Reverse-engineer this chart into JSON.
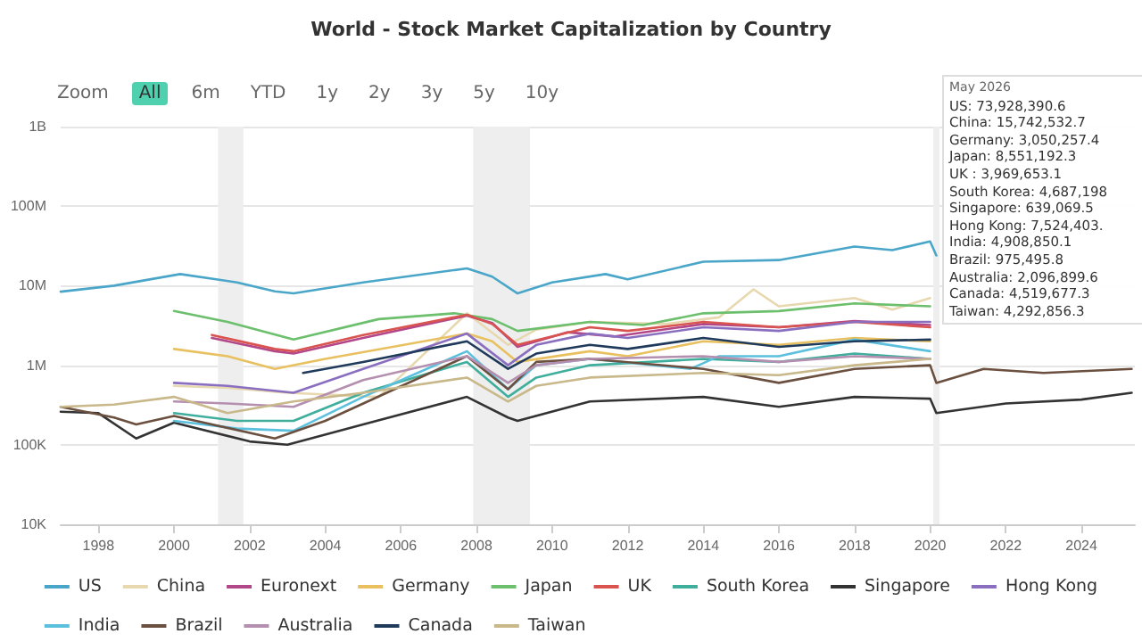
{
  "chart_data": {
    "type": "line",
    "title": "World - Stock Market Capitalization by Country",
    "log": "y",
    "grid": "y",
    "legend": "bottom",
    "marker": "none",
    "line_style": "solid",
    "xlim": [
      "1997-01",
      "2025-06"
    ],
    "xticks": [
      "1998",
      "2000",
      "2002",
      "2004",
      "2006",
      "2008",
      "2010",
      "2012",
      "2014",
      "2016",
      "2018",
      "2020",
      "2022",
      "2024"
    ],
    "ylim": [
      10000,
      1000000000
    ],
    "yticks": [
      {
        "value": 10000,
        "label": "10K"
      },
      {
        "value": 100000,
        "label": "100K"
      },
      {
        "value": 1000000,
        "label": "1M"
      },
      {
        "value": 10000000,
        "label": "10M"
      },
      {
        "value": 100000000,
        "label": "100M"
      },
      {
        "value": 1000000000,
        "label": "1B"
      }
    ],
    "bands": [
      {
        "axis": "x",
        "from": "2001-03",
        "to": "2001-11",
        "color": "#eeeeee"
      },
      {
        "axis": "x",
        "from": "2007-12",
        "to": "2009-06",
        "color": "#eeeeee"
      },
      {
        "axis": "x",
        "from": "2020-02",
        "to": "2020-04",
        "color": "#eeeeee"
      }
    ],
    "annotations": [
      "Zoom",
      "All",
      "6m",
      "YTD",
      "1y",
      "2y",
      "3y",
      "5y",
      "10y",
      "May 2026",
      "US: 73,928,390.6",
      "China: 15,742,532.7",
      "Germany: 3,050,257.4",
      "Japan: 8,551,192.3",
      "UK : 3,969,653.1",
      "South Korea: 4,687,198",
      "Singapore: 639,069.5",
      "Hong Kong: 7,524,403.",
      "India: 4,908,850.1",
      "Brazil: 975,495.8",
      "Australia: 2,096,899.6",
      "Canada: 4,519,677.3",
      "Taiwan: 4,292,856.3"
    ],
    "series": [
      {
        "name": "US",
        "color": "#4aa6c9",
        "x": [
          "1997-01",
          "1998-06",
          "2000-03",
          "2001-09",
          "2002-09",
          "2003-03",
          "2005-01",
          "2007-10",
          "2008-06",
          "2009-02",
          "2010-01",
          "2011-06",
          "2012-01",
          "2014-01",
          "2016-01",
          "2018-01",
          "2019-01",
          "2020-01",
          "2020-03"
        ],
        "values": [
          8400000,
          10000000,
          14000000,
          11000000,
          8500000,
          8000000,
          11000000,
          16500000,
          13000000,
          8000000,
          11000000,
          14000000,
          12000000,
          20000000,
          21000000,
          31000000,
          28000000,
          36000000,
          24000000
        ]
      },
      {
        "name": "China",
        "color": "#e8d8b0",
        "x": [
          "2000-01",
          "2001-06",
          "2003-01",
          "2005-06",
          "2007-10",
          "2008-11",
          "2009-08",
          "2011-01",
          "2013-01",
          "2014-06",
          "2015-05",
          "2016-01",
          "2018-01",
          "2019-01",
          "2020-01"
        ],
        "values": [
          550000,
          520000,
          450000,
          400000,
          4500000,
          1800000,
          2800000,
          3500000,
          3300000,
          4000000,
          9000000,
          5500000,
          7000000,
          5000000,
          7000000
        ]
      },
      {
        "name": "Euronext",
        "color": "#b2478a",
        "x": [
          "2001-01",
          "2002-09",
          "2003-03",
          "2005-01",
          "2007-10",
          "2008-06",
          "2009-02",
          "2010-06",
          "2011-09",
          "2014-01",
          "2016-01",
          "2018-01",
          "2020-01"
        ],
        "values": [
          2200000,
          1500000,
          1400000,
          2200000,
          4200000,
          3400000,
          1700000,
          2600000,
          2300000,
          3300000,
          3000000,
          3600000,
          3200000
        ]
      },
      {
        "name": "Germany",
        "color": "#e8c060",
        "x": [
          "2000-01",
          "2001-06",
          "2002-09",
          "2004-01",
          "2007-10",
          "2008-06",
          "2009-02",
          "2011-01",
          "2012-01",
          "2014-01",
          "2016-01",
          "2018-01",
          "2020-01"
        ],
        "values": [
          1600000,
          1300000,
          900000,
          1200000,
          2500000,
          2000000,
          1100000,
          1500000,
          1300000,
          2000000,
          1800000,
          2200000,
          2000000
        ]
      },
      {
        "name": "Japan",
        "color": "#6cbf6c",
        "x": [
          "2000-01",
          "2001-06",
          "2003-03",
          "2005-06",
          "2007-06",
          "2008-06",
          "2009-02",
          "2011-01",
          "2012-06",
          "2014-01",
          "2016-01",
          "2018-01",
          "2020-01"
        ],
        "values": [
          4800000,
          3500000,
          2100000,
          3800000,
          4500000,
          3800000,
          2700000,
          3500000,
          3200000,
          4500000,
          4800000,
          6000000,
          5500000
        ]
      },
      {
        "name": "UK",
        "color": "#d9534f",
        "x": [
          "2001-01",
          "2002-09",
          "2003-03",
          "2005-01",
          "2007-10",
          "2008-06",
          "2009-02",
          "2011-01",
          "2012-01",
          "2014-01",
          "2016-01",
          "2018-01",
          "2020-01"
        ],
        "values": [
          2400000,
          1600000,
          1500000,
          2400000,
          4300000,
          3300000,
          1800000,
          3000000,
          2700000,
          3500000,
          3000000,
          3500000,
          3000000
        ]
      },
      {
        "name": "South Korea",
        "color": "#3fae9c",
        "x": [
          "2000-01",
          "2001-09",
          "2003-03",
          "2005-01",
          "2007-10",
          "2008-11",
          "2009-08",
          "2011-01",
          "2014-01",
          "2016-01",
          "2018-01",
          "2020-01"
        ],
        "values": [
          250000,
          200000,
          200000,
          450000,
          1100000,
          400000,
          700000,
          1000000,
          1200000,
          1100000,
          1400000,
          1200000
        ]
      },
      {
        "name": "Singapore",
        "color": "#333333",
        "x": [
          "1997-01",
          "1998-01",
          "1999-01",
          "2000-01",
          "2002-01",
          "2003-01",
          "2005-01",
          "2007-10",
          "2008-11",
          "2009-02",
          "2011-01",
          "2014-01",
          "2016-01",
          "2018-01",
          "2020-01",
          "2020-03",
          "2022-01",
          "2024-01",
          "2025-05"
        ],
        "values": [
          260000,
          250000,
          120000,
          190000,
          110000,
          100000,
          180000,
          400000,
          220000,
          200000,
          350000,
          400000,
          300000,
          400000,
          380000,
          250000,
          330000,
          370000,
          450000
        ]
      },
      {
        "name": "Hong Kong",
        "color": "#8a6fc0",
        "x": [
          "2000-01",
          "2001-06",
          "2003-03",
          "2005-01",
          "2007-10",
          "2008-11",
          "2009-08",
          "2011-01",
          "2012-01",
          "2014-01",
          "2016-01",
          "2018-01",
          "2020-01"
        ],
        "values": [
          600000,
          550000,
          450000,
          900000,
          2500000,
          1000000,
          1800000,
          2500000,
          2200000,
          3000000,
          2700000,
          3500000,
          3500000
        ]
      },
      {
        "name": "India",
        "color": "#5bc0de",
        "x": [
          "2000-01",
          "2001-09",
          "2003-03",
          "2005-01",
          "2007-10",
          "2008-11",
          "2009-08",
          "2011-01",
          "2013-09",
          "2014-06",
          "2016-01",
          "2018-01",
          "2020-01"
        ],
        "values": [
          200000,
          160000,
          150000,
          400000,
          1500000,
          500000,
          1000000,
          1200000,
          900000,
          1300000,
          1300000,
          2100000,
          1500000
        ]
      },
      {
        "name": "Brazil",
        "color": "#6b4f3f",
        "x": [
          "1997-01",
          "1998-06",
          "1999-01",
          "2000-01",
          "2002-09",
          "2004-01",
          "2007-10",
          "2008-11",
          "2009-08",
          "2011-01",
          "2014-01",
          "2016-01",
          "2018-01",
          "2020-01",
          "2020-03",
          "2021-06",
          "2023-01",
          "2025-05"
        ],
        "values": [
          300000,
          220000,
          180000,
          230000,
          120000,
          200000,
          1300000,
          500000,
          1100000,
          1200000,
          900000,
          600000,
          900000,
          1000000,
          600000,
          900000,
          800000,
          900000
        ]
      },
      {
        "name": "Australia",
        "color": "#b48fb0",
        "x": [
          "2000-01",
          "2001-06",
          "2003-03",
          "2005-01",
          "2007-10",
          "2008-11",
          "2009-08",
          "2011-01",
          "2014-01",
          "2016-01",
          "2018-01",
          "2020-01"
        ],
        "values": [
          350000,
          330000,
          300000,
          650000,
          1300000,
          600000,
          1000000,
          1200000,
          1300000,
          1100000,
          1300000,
          1200000
        ]
      },
      {
        "name": "Canada",
        "color": "#1f3a5a",
        "x": [
          "2003-06",
          "2005-01",
          "2007-10",
          "2008-11",
          "2009-08",
          "2011-01",
          "2012-01",
          "2014-01",
          "2016-01",
          "2018-01",
          "2020-01"
        ],
        "values": [
          800000,
          1100000,
          2000000,
          900000,
          1400000,
          1800000,
          1600000,
          2200000,
          1700000,
          2000000,
          2100000
        ]
      },
      {
        "name": "Taiwan",
        "color": "#c8b88a",
        "x": [
          "1997-01",
          "1998-06",
          "2000-01",
          "2001-06",
          "2003-03",
          "2005-01",
          "2007-10",
          "2008-11",
          "2009-08",
          "2011-01",
          "2014-01",
          "2016-01",
          "2018-01",
          "2020-01"
        ],
        "values": [
          300000,
          320000,
          400000,
          250000,
          350000,
          450000,
          700000,
          350000,
          550000,
          700000,
          800000,
          750000,
          1000000,
          1200000
        ]
      }
    ]
  }
}
